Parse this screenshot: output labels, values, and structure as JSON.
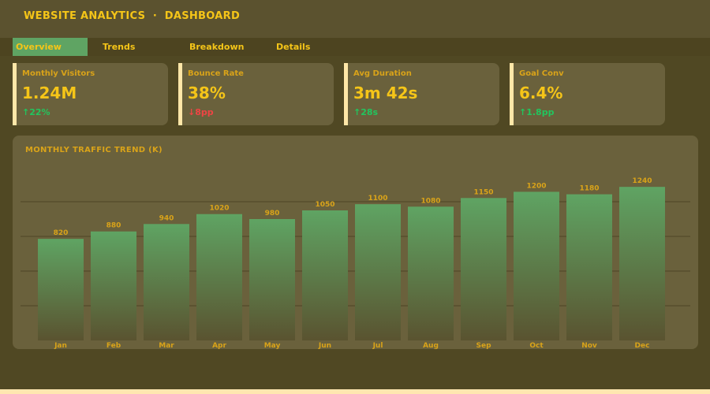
{
  "header": {
    "title": "WEBSITE ANALYTICS  ·  DASHBOARD"
  },
  "tabs": [
    {
      "label": "Overview",
      "active": true
    },
    {
      "label": "Trends"
    },
    {
      "label": "Breakdown"
    },
    {
      "label": "Details"
    }
  ],
  "kpis": [
    {
      "label": "Monthly Visitors",
      "value": "1.24M",
      "change": "↑22%",
      "trend": "up"
    },
    {
      "label": "Bounce Rate",
      "value": "38%",
      "change": "↓8pp",
      "trend": "down"
    },
    {
      "label": "Avg Duration",
      "value": "3m 42s",
      "change": "↑28s",
      "trend": "up"
    },
    {
      "label": "Goal Conv",
      "value": "6.4%",
      "change": "↑1.8pp",
      "trend": "up"
    }
  ],
  "colors": {
    "accent": "#f5c518",
    "bar_top": "#5fa463",
    "bar_bottom": "#5a5330",
    "up": "#22c55e",
    "down": "#ef4444"
  },
  "chart_data": {
    "type": "bar",
    "title": "MONTHLY TRAFFIC TREND (K)",
    "categories": [
      "Jan",
      "Feb",
      "Mar",
      "Apr",
      "May",
      "Jun",
      "Jul",
      "Aug",
      "Sep",
      "Oct",
      "Nov",
      "Dec"
    ],
    "values": [
      820,
      880,
      940,
      1020,
      980,
      1050,
      1100,
      1080,
      1150,
      1200,
      1180,
      1240
    ],
    "ylim": [
      0,
      1400
    ],
    "grid": true,
    "gridlines": [
      280,
      560,
      840,
      1120
    ]
  }
}
